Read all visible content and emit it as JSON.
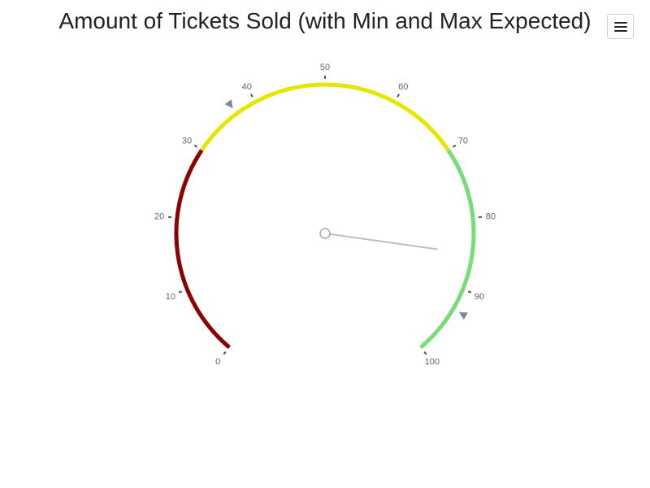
{
  "menu": {
    "icon": "hamburger-menu-icon"
  },
  "chart_data": {
    "type": "gauge",
    "title": "Amount of Tickets Sold (with Min and Max Expected)",
    "min": 0,
    "max": 100,
    "tick_labels": [
      "0",
      "10",
      "20",
      "30",
      "40",
      "50",
      "60",
      "70",
      "80",
      "90",
      "100"
    ],
    "value": 85,
    "expected_min": 37,
    "expected_max": 93,
    "bands": [
      {
        "from": 0,
        "to": 30,
        "color": "#8b0000"
      },
      {
        "from": 30,
        "to": 70,
        "color": "#e6e600"
      },
      {
        "from": 70,
        "to": 100,
        "color": "#77dd77"
      }
    ],
    "needle_color": "#c0c0c0",
    "marker_color": "#7a8a99"
  }
}
